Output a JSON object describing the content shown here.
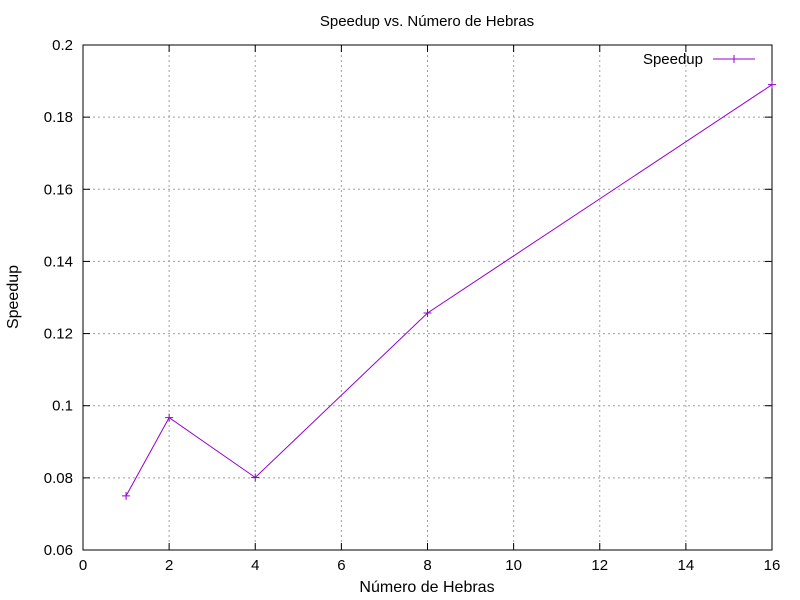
{
  "chart_data": {
    "type": "line",
    "title": "Speedup vs. Número de Hebras",
    "xlabel": "Número de Hebras",
    "ylabel": "Speedup",
    "xlim": [
      0,
      16
    ],
    "ylim": [
      0.06,
      0.2
    ],
    "xticks": [
      0,
      2,
      4,
      6,
      8,
      10,
      12,
      14,
      16
    ],
    "yticks": [
      0.06,
      0.08,
      0.1,
      0.12,
      0.14,
      0.16,
      0.18,
      0.2
    ],
    "xtick_labels": [
      "0",
      "2",
      "4",
      "6",
      "8",
      "10",
      "12",
      "14",
      "16"
    ],
    "ytick_labels": [
      "0.06",
      "0.08",
      "0.1",
      "0.12",
      "0.14",
      "0.16",
      "0.18",
      "0.2"
    ],
    "grid": true,
    "legend_position": "top-right",
    "series": [
      {
        "name": "Speedup",
        "color": "#9400d3",
        "marker": "plus",
        "x": [
          1,
          2,
          4,
          8,
          16
        ],
        "y": [
          0.075,
          0.0967,
          0.0801,
          0.1257,
          0.189
        ]
      }
    ]
  }
}
